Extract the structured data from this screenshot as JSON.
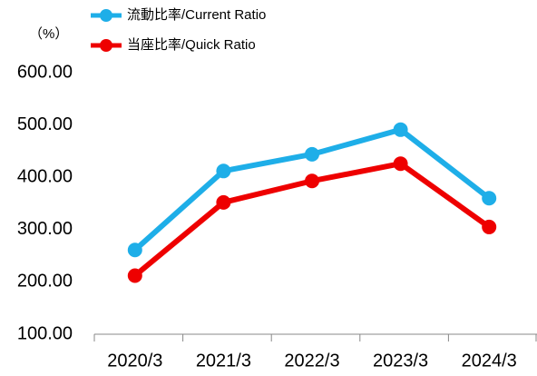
{
  "chart_data": {
    "type": "line",
    "y_axis_label": "（%）",
    "categories": [
      "2020/3",
      "2021/3",
      "2022/3",
      "2023/3",
      "2024/3"
    ],
    "series": [
      {
        "name": "流動比率/Current Ratio",
        "color": "#1eaee8",
        "values": [
          261,
          412,
          444,
          491,
          360
        ]
      },
      {
        "name": "当座比率/Quick Ratio",
        "color": "#ee0000",
        "values": [
          212,
          352,
          393,
          426,
          305
        ]
      }
    ],
    "ylim": [
      100,
      600
    ],
    "yticks": [
      {
        "value": 100,
        "label": "100.00"
      },
      {
        "value": 200,
        "label": "200.00"
      },
      {
        "value": 300,
        "label": "300.00"
      },
      {
        "value": 400,
        "label": "400.00"
      },
      {
        "value": 500,
        "label": "500.00"
      },
      {
        "value": 600,
        "label": "600.00"
      }
    ],
    "legend": "top-left"
  }
}
